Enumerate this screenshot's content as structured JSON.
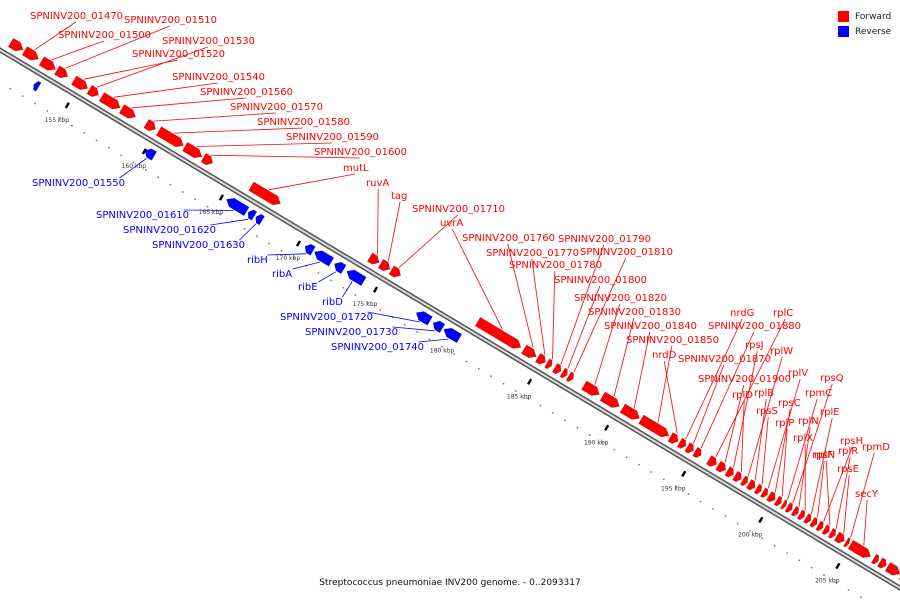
{
  "colors": {
    "forward": "#ff0000",
    "reverse": "#0000ff",
    "backbone": "#9a9a9a"
  },
  "legend": [
    {
      "label": "Forward",
      "color": "#ff0000"
    },
    {
      "label": "Reverse",
      "color": "#0000ff"
    }
  ],
  "caption": "Streptococcus pneumoniae INV200 genome. - 0..2093317",
  "ticks": [
    {
      "kbp": 155,
      "label": "155 kbp"
    },
    {
      "kbp": 160,
      "label": "160 kbp"
    },
    {
      "kbp": 165,
      "label": "165 kbp"
    },
    {
      "kbp": 170,
      "label": "170 kbp"
    },
    {
      "kbp": 175,
      "label": "175 kbp"
    },
    {
      "kbp": 180,
      "label": "180 kbp"
    },
    {
      "kbp": 185,
      "label": "185 kbp"
    },
    {
      "kbp": 190,
      "label": "190 kbp"
    },
    {
      "kbp": 195,
      "label": "195 kbp"
    },
    {
      "kbp": 200,
      "label": "200 kbp"
    },
    {
      "kbp": 205,
      "label": "205 kbp"
    }
  ],
  "features": [
    {
      "name": "",
      "strand": "forward",
      "start": 150.5,
      "end": 151.3
    },
    {
      "name": "SPNINV200_01470",
      "strand": "forward",
      "start": 151.4,
      "end": 152.3
    },
    {
      "name": "SPNINV200_01500",
      "strand": "forward",
      "start": 152.5,
      "end": 153.4
    },
    {
      "name": "SPNINV200_01510",
      "strand": "forward",
      "start": 153.5,
      "end": 154.2
    },
    {
      "name": "SPNINV200_01520",
      "strand": "forward",
      "start": 154.6,
      "end": 155.5
    },
    {
      "name": "SPNINV200_01530",
      "strand": "forward",
      "start": 155.6,
      "end": 156.2
    },
    {
      "name": "SPNINV200_01540",
      "strand": "forward",
      "start": 156.4,
      "end": 157.6
    },
    {
      "name": "SPNINV200_01560",
      "strand": "forward",
      "start": 157.7,
      "end": 158.6
    },
    {
      "name": "SPNINV200_01570",
      "strand": "forward",
      "start": 159.3,
      "end": 159.9
    },
    {
      "name": "SPNINV200_01580",
      "strand": "forward",
      "start": 160.1,
      "end": 161.7
    },
    {
      "name": "SPNINV200_01590",
      "strand": "forward",
      "start": 161.8,
      "end": 162.9
    },
    {
      "name": "SPNINV200_01600",
      "strand": "forward",
      "start": 163.0,
      "end": 163.6
    },
    {
      "name": "",
      "strand": "reverse",
      "start": 152.8,
      "end": 153.1
    },
    {
      "name": "SPNINV200_01550",
      "strand": "reverse",
      "start": 160.0,
      "end": 160.6
    },
    {
      "name": "SPNINV200_01610",
      "strand": "reverse",
      "start": 165.3,
      "end": 166.6
    },
    {
      "name": "SPNINV200_01620",
      "strand": "reverse",
      "start": 166.7,
      "end": 167.1
    },
    {
      "name": "SPNINV200_01630",
      "strand": "reverse",
      "start": 167.2,
      "end": 167.6
    },
    {
      "name": "mutL",
      "strand": "forward",
      "start": 166.1,
      "end": 168.0
    },
    {
      "name": "ribH",
      "strand": "reverse",
      "start": 170.4,
      "end": 170.9
    },
    {
      "name": "ribA",
      "strand": "reverse",
      "start": 171.0,
      "end": 172.1
    },
    {
      "name": "ribE",
      "strand": "reverse",
      "start": 172.3,
      "end": 172.9
    },
    {
      "name": "ribD",
      "strand": "reverse",
      "start": 173.1,
      "end": 174.2
    },
    {
      "name": "ruvA",
      "strand": "forward",
      "start": 173.8,
      "end": 174.4
    },
    {
      "name": "tag",
      "strand": "forward",
      "start": 174.5,
      "end": 175.1
    },
    {
      "name": "SPNINV200_01710",
      "strand": "forward",
      "start": 175.2,
      "end": 175.8
    },
    {
      "name": "SPNINV200_01720",
      "strand": "reverse",
      "start": 177.6,
      "end": 178.5
    },
    {
      "name": "SPNINV200_01730",
      "strand": "reverse",
      "start": 178.7,
      "end": 179.3
    },
    {
      "name": "SPNINV200_01740",
      "strand": "reverse",
      "start": 179.4,
      "end": 180.4
    },
    {
      "name": "uvrA",
      "strand": "forward",
      "start": 180.8,
      "end": 183.6
    },
    {
      "name": "SPNINV200_01760",
      "strand": "forward",
      "start": 183.8,
      "end": 184.6
    },
    {
      "name": "SPNINV200_01770",
      "strand": "forward",
      "start": 184.7,
      "end": 185.2
    },
    {
      "name": "SPNINV200_01780",
      "strand": "forward",
      "start": 185.3,
      "end": 185.6
    },
    {
      "name": "SPNINV200_01790",
      "strand": "forward",
      "start": 185.8,
      "end": 186.2
    },
    {
      "name": "SPNINV200_01800",
      "strand": "forward",
      "start": 186.3,
      "end": 186.6
    },
    {
      "name": "SPNINV200_01810",
      "strand": "forward",
      "start": 186.7,
      "end": 187.0
    },
    {
      "name": "SPNINV200_01820",
      "strand": "forward",
      "start": 187.7,
      "end": 188.7
    },
    {
      "name": "SPNINV200_01830",
      "strand": "forward",
      "start": 188.9,
      "end": 190.0
    },
    {
      "name": "SPNINV200_01840",
      "strand": "forward",
      "start": 190.2,
      "end": 191.3
    },
    {
      "name": "SPNINV200_01850",
      "strand": "forward",
      "start": 191.4,
      "end": 193.2
    },
    {
      "name": "nrdD",
      "strand": "forward",
      "start": 193.3,
      "end": 193.8
    },
    {
      "name": "nrdG",
      "strand": "forward",
      "start": 193.9,
      "end": 194.3
    },
    {
      "name": "SPNINV200_01870",
      "strand": "forward",
      "start": 194.4,
      "end": 194.8
    },
    {
      "name": "SPNINV200_01880",
      "strand": "forward",
      "start": 194.9,
      "end": 195.3
    },
    {
      "name": "rplC",
      "strand": "forward",
      "start": 195.8,
      "end": 196.3
    },
    {
      "name": "SPNINV200_01900",
      "strand": "forward",
      "start": 196.4,
      "end": 196.9
    },
    {
      "name": "rpsJ",
      "strand": "forward",
      "start": 197.0,
      "end": 197.4
    },
    {
      "name": "rplD",
      "strand": "forward",
      "start": 197.5,
      "end": 197.9
    },
    {
      "name": "rplW",
      "strand": "forward",
      "start": 198.0,
      "end": 198.3
    },
    {
      "name": "rplB",
      "strand": "forward",
      "start": 198.4,
      "end": 198.8
    },
    {
      "name": "rpsS",
      "strand": "forward",
      "start": 198.9,
      "end": 199.2
    },
    {
      "name": "rplV",
      "strand": "forward",
      "start": 199.3,
      "end": 199.6
    },
    {
      "name": "rpsC",
      "strand": "forward",
      "start": 199.7,
      "end": 200.1
    },
    {
      "name": "rplP",
      "strand": "forward",
      "start": 200.2,
      "end": 200.5
    },
    {
      "name": "rpmC",
      "strand": "forward",
      "start": 200.6,
      "end": 200.8
    },
    {
      "name": "rpsQ",
      "strand": "forward",
      "start": 200.9,
      "end": 201.2
    },
    {
      "name": "rplN",
      "strand": "forward",
      "start": 201.3,
      "end": 201.6
    },
    {
      "name": "rplX",
      "strand": "forward",
      "start": 201.7,
      "end": 202.0
    },
    {
      "name": "rplE",
      "strand": "forward",
      "start": 202.1,
      "end": 202.4
    },
    {
      "name": "rpsN",
      "strand": "forward",
      "start": 202.5,
      "end": 202.8
    },
    {
      "name": "rpsH",
      "strand": "forward",
      "start": 202.9,
      "end": 203.2
    },
    {
      "name": "rplF",
      "strand": "forward",
      "start": 203.3,
      "end": 203.6
    },
    {
      "name": "rplR",
      "strand": "forward",
      "start": 203.7,
      "end": 204.0
    },
    {
      "name": "rpsE",
      "strand": "forward",
      "start": 204.1,
      "end": 204.6
    },
    {
      "name": "rpmD",
      "strand": "forward",
      "start": 204.7,
      "end": 204.9
    },
    {
      "name": "secY",
      "strand": "forward",
      "start": 205.0,
      "end": 206.3
    },
    {
      "name": "",
      "strand": "forward",
      "start": 206.5,
      "end": 206.8
    },
    {
      "name": "",
      "strand": "forward",
      "start": 206.9,
      "end": 207.3
    },
    {
      "name": "",
      "strand": "forward",
      "start": 207.4,
      "end": 208.2
    },
    {
      "name": "",
      "strand": "forward",
      "start": 208.3,
      "end": 208.7
    }
  ]
}
